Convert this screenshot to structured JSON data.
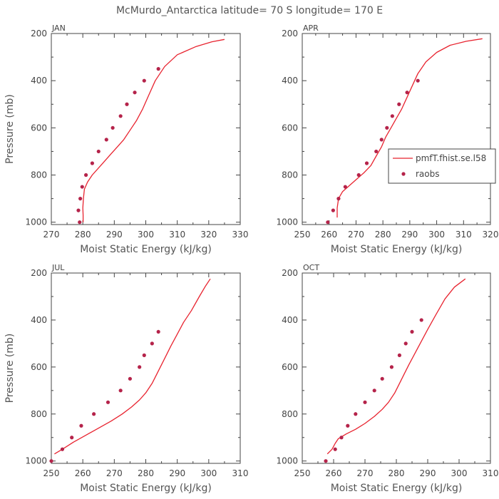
{
  "title": "McMurdo_Antarctica  latitude= 70 S longitude= 170 E",
  "colors": {
    "model": "#e8232f",
    "obs": "#b5234a",
    "axis": "#444444"
  },
  "legend": {
    "model_label": "pmfT.fhist.se.l58",
    "obs_label": "raobs"
  },
  "chart_data": [
    {
      "type": "line",
      "panel": "JAN",
      "xlabel": "Moist Static Energy (kJ/kg)",
      "ylabel": "Pressure (mb)",
      "xlim": [
        270,
        330
      ],
      "ylim": [
        1010,
        200
      ],
      "xticks": [
        270,
        280,
        290,
        300,
        310,
        320,
        330
      ],
      "yticks": [
        200,
        400,
        600,
        800,
        1000
      ],
      "model": [
        [
          280.1,
          1000
        ],
        [
          280.1,
          970
        ],
        [
          280,
          940
        ],
        [
          280.2,
          900
        ],
        [
          280.5,
          860
        ],
        [
          281.5,
          830
        ],
        [
          283,
          800
        ],
        [
          285,
          770
        ],
        [
          287,
          740
        ],
        [
          289,
          710
        ],
        [
          291,
          680
        ],
        [
          293,
          650
        ],
        [
          295,
          610
        ],
        [
          297,
          570
        ],
        [
          299,
          520
        ],
        [
          301,
          460
        ],
        [
          303,
          400
        ],
        [
          306,
          340
        ],
        [
          310,
          290
        ],
        [
          316,
          255
        ],
        [
          321,
          235
        ],
        [
          325,
          225
        ]
      ],
      "obs": [
        [
          279,
          1000
        ],
        [
          278.6,
          950
        ],
        [
          279.2,
          900
        ],
        [
          279.8,
          850
        ],
        [
          281,
          800
        ],
        [
          283,
          750
        ],
        [
          285,
          700
        ],
        [
          287.5,
          650
        ],
        [
          289.5,
          600
        ],
        [
          292,
          550
        ],
        [
          294,
          500
        ],
        [
          296.5,
          450
        ],
        [
          299.5,
          400
        ],
        [
          304,
          350
        ]
      ]
    },
    {
      "type": "line",
      "panel": "APR",
      "xlabel": "Moist Static Energy (kJ/kg)",
      "ylabel": "",
      "xlim": [
        250,
        320
      ],
      "ylim": [
        1010,
        200
      ],
      "xticks": [
        250,
        260,
        270,
        280,
        290,
        300,
        310,
        320
      ],
      "yticks": [
        200,
        400,
        600,
        800,
        1000
      ],
      "legend_position": "right",
      "model": [
        [
          263,
          980
        ],
        [
          263,
          940
        ],
        [
          263.5,
          900
        ],
        [
          265,
          870
        ],
        [
          267,
          850
        ],
        [
          270,
          820
        ],
        [
          273,
          790
        ],
        [
          275.5,
          760
        ],
        [
          277.5,
          720
        ],
        [
          279.5,
          680
        ],
        [
          281,
          640
        ],
        [
          283,
          600
        ],
        [
          285,
          560
        ],
        [
          287,
          520
        ],
        [
          289,
          470
        ],
        [
          291,
          420
        ],
        [
          293,
          370
        ],
        [
          296,
          320
        ],
        [
          300,
          280
        ],
        [
          305,
          250
        ],
        [
          311,
          233
        ],
        [
          317,
          222
        ]
      ],
      "obs": [
        [
          259.5,
          1000
        ],
        [
          261.5,
          950
        ],
        [
          263.5,
          900
        ],
        [
          266,
          850
        ],
        [
          271,
          800
        ],
        [
          274,
          750
        ],
        [
          277.5,
          700
        ],
        [
          279.5,
          650
        ],
        [
          281.5,
          600
        ],
        [
          283.5,
          550
        ],
        [
          286,
          500
        ],
        [
          289,
          450
        ],
        [
          293,
          400
        ]
      ]
    },
    {
      "type": "line",
      "panel": "JUL",
      "xlabel": "Moist Static Energy (kJ/kg)",
      "ylabel": "Pressure (mb)",
      "xlim": [
        250,
        310
      ],
      "ylim": [
        1010,
        200
      ],
      "xticks": [
        250,
        260,
        270,
        280,
        290,
        300,
        310
      ],
      "yticks": [
        200,
        400,
        600,
        800,
        1000
      ],
      "model": [
        [
          251,
          970
        ],
        [
          253.5,
          950
        ],
        [
          257,
          920
        ],
        [
          261,
          890
        ],
        [
          265,
          860
        ],
        [
          269,
          830
        ],
        [
          272.5,
          800
        ],
        [
          275.5,
          770
        ],
        [
          278,
          740
        ],
        [
          280,
          710
        ],
        [
          282,
          670
        ],
        [
          283.5,
          630
        ],
        [
          285,
          590
        ],
        [
          286.5,
          550
        ],
        [
          288,
          510
        ],
        [
          290,
          460
        ],
        [
          292,
          410
        ],
        [
          294.5,
          360
        ],
        [
          297,
          300
        ],
        [
          299,
          255
        ],
        [
          300.5,
          225
        ]
      ],
      "obs": [
        [
          250,
          1000
        ],
        [
          253.5,
          950
        ],
        [
          256.5,
          900
        ],
        [
          259.5,
          850
        ],
        [
          263.5,
          800
        ],
        [
          268,
          750
        ],
        [
          272,
          700
        ],
        [
          275,
          650
        ],
        [
          278,
          600
        ],
        [
          279.5,
          550
        ],
        [
          282,
          500
        ],
        [
          284,
          450
        ]
      ]
    },
    {
      "type": "line",
      "panel": "OCT",
      "xlabel": "Moist Static Energy (kJ/kg)",
      "ylabel": "",
      "xlim": [
        250,
        310
      ],
      "ylim": [
        1010,
        200
      ],
      "xticks": [
        250,
        260,
        270,
        280,
        290,
        300,
        310
      ],
      "yticks": [
        200,
        400,
        600,
        800,
        1000
      ],
      "model": [
        [
          258,
          970
        ],
        [
          259.5,
          950
        ],
        [
          260.5,
          925
        ],
        [
          261.5,
          905
        ],
        [
          264,
          885
        ],
        [
          267,
          865
        ],
        [
          270,
          840
        ],
        [
          273,
          810
        ],
        [
          275.5,
          780
        ],
        [
          277.5,
          750
        ],
        [
          279.5,
          710
        ],
        [
          281,
          670
        ],
        [
          282.5,
          630
        ],
        [
          284,
          590
        ],
        [
          286,
          540
        ],
        [
          288,
          490
        ],
        [
          290,
          440
        ],
        [
          292.5,
          380
        ],
        [
          295.5,
          310
        ],
        [
          298.5,
          260
        ],
        [
          302,
          225
        ]
      ],
      "obs": [
        [
          257.5,
          1000
        ],
        [
          260.5,
          950
        ],
        [
          262.5,
          900
        ],
        [
          264.5,
          850
        ],
        [
          267,
          800
        ],
        [
          270,
          750
        ],
        [
          273,
          700
        ],
        [
          275.5,
          650
        ],
        [
          278.5,
          600
        ],
        [
          281,
          550
        ],
        [
          283,
          500
        ],
        [
          285,
          450
        ],
        [
          288,
          400
        ]
      ]
    }
  ]
}
